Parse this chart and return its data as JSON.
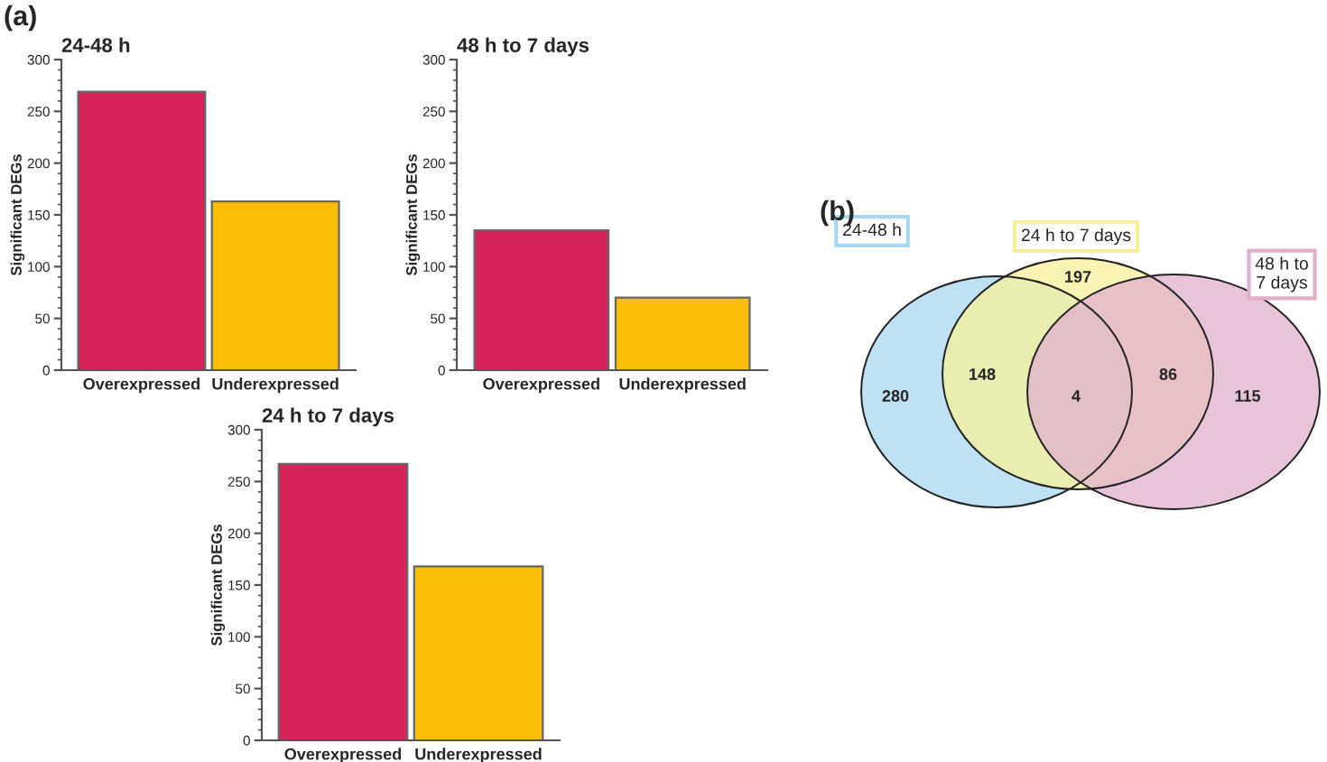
{
  "chart_data": [
    {
      "type": "bar",
      "title": "24-48 h",
      "ylabel": "Significant DEGs",
      "annotations": [
        "(a)"
      ],
      "categories": [
        "Overexpressed",
        "Underexpressed"
      ],
      "values": [
        269,
        163
      ],
      "colors": [
        "#d6245a",
        "#fbbf0a"
      ],
      "ylim": [
        0,
        300
      ],
      "yticks": [
        0,
        50,
        100,
        150,
        200,
        250,
        300
      ]
    },
    {
      "type": "bar",
      "title": "48 h to 7 days",
      "ylabel": "Significant DEGs",
      "categories": [
        "Overexpressed",
        "Underexpressed"
      ],
      "values": [
        135,
        70
      ],
      "colors": [
        "#d6245a",
        "#fbbf0a"
      ],
      "ylim": [
        0,
        300
      ],
      "yticks": [
        0,
        50,
        100,
        150,
        200,
        250,
        300
      ]
    },
    {
      "type": "bar",
      "title": "24 h to 7 days",
      "ylabel": "Significant DEGs",
      "categories": [
        "Overexpressed",
        "Underexpressed"
      ],
      "values": [
        267,
        168
      ],
      "colors": [
        "#d6245a",
        "#fbbf0a"
      ],
      "ylim": [
        0,
        300
      ],
      "yticks": [
        0,
        50,
        100,
        150,
        200,
        250,
        300
      ]
    },
    {
      "type": "other",
      "title": "(b)",
      "categories": [
        "24-48 h",
        "24 h to 7 days",
        "48 h to\n7 days"
      ],
      "colors": [
        "#a8d8f0",
        "#f7f09a",
        "#e0b0cc"
      ],
      "annotations": [
        "280",
        "148",
        "4",
        "86",
        "115",
        "197"
      ]
    }
  ]
}
